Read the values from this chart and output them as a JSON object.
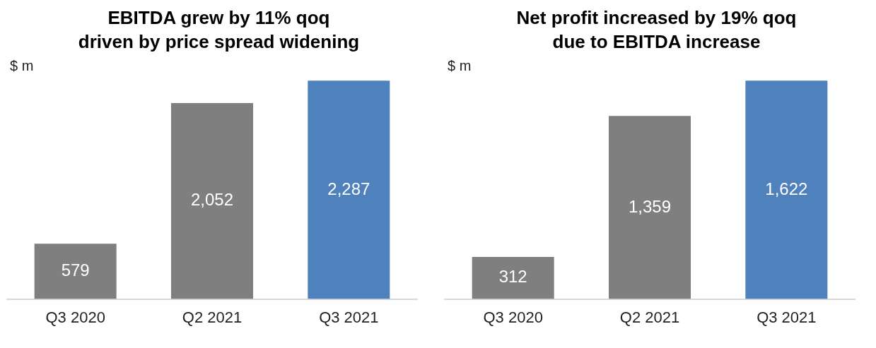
{
  "chart_data": [
    {
      "type": "bar",
      "title": "EBITDA grew by 11% qoq\ndriven by price spread widening",
      "ylabel": "$ m",
      "categories": [
        "Q3 2020",
        "Q2 2021",
        "Q3 2021"
      ],
      "values": [
        579,
        2052,
        2287
      ],
      "colors": [
        "#7f7f7f",
        "#7f7f7f",
        "#4f81bd"
      ],
      "value_labels": [
        "579",
        "2,052",
        "2,287"
      ],
      "grid": false,
      "legend": false,
      "tick_labels": "x"
    },
    {
      "type": "bar",
      "title": "Net profit increased by 19% qoq\ndue to EBITDA increase",
      "ylabel": "$ m",
      "categories": [
        "Q3 2020",
        "Q2 2021",
        "Q3 2021"
      ],
      "values": [
        312,
        1359,
        1622
      ],
      "colors": [
        "#7f7f7f",
        "#7f7f7f",
        "#4f81bd"
      ],
      "value_labels": [
        "312",
        "1,359",
        "1,622"
      ],
      "grid": false,
      "legend": false,
      "tick_labels": "x"
    }
  ]
}
